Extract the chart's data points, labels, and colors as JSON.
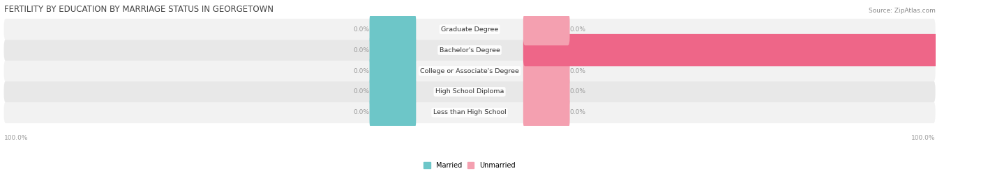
{
  "title": "FERTILITY BY EDUCATION BY MARRIAGE STATUS IN GEORGETOWN",
  "source": "Source: ZipAtlas.com",
  "categories": [
    "Less than High School",
    "High School Diploma",
    "College or Associate's Degree",
    "Bachelor's Degree",
    "Graduate Degree"
  ],
  "married_values": [
    0.0,
    0.0,
    0.0,
    0.0,
    0.0
  ],
  "unmarried_values": [
    0.0,
    0.0,
    0.0,
    100.0,
    0.0
  ],
  "married_color": "#6DC6C8",
  "unmarried_color_small": "#F4A0B0",
  "unmarried_color_large": "#EE6688",
  "bar_bg_colors": [
    "#F2F2F2",
    "#E8E8E8"
  ],
  "label_color": "#999999",
  "title_color": "#444444",
  "source_color": "#888888",
  "stub_size": 9,
  "bar_height": 0.55,
  "figsize": [
    14.06,
    2.69
  ],
  "dpi": 100,
  "font_size_title": 8.5,
  "font_size_labels": 6.5,
  "font_size_category": 6.8,
  "legend_married": "Married",
  "legend_unmarried": "Unmarried"
}
